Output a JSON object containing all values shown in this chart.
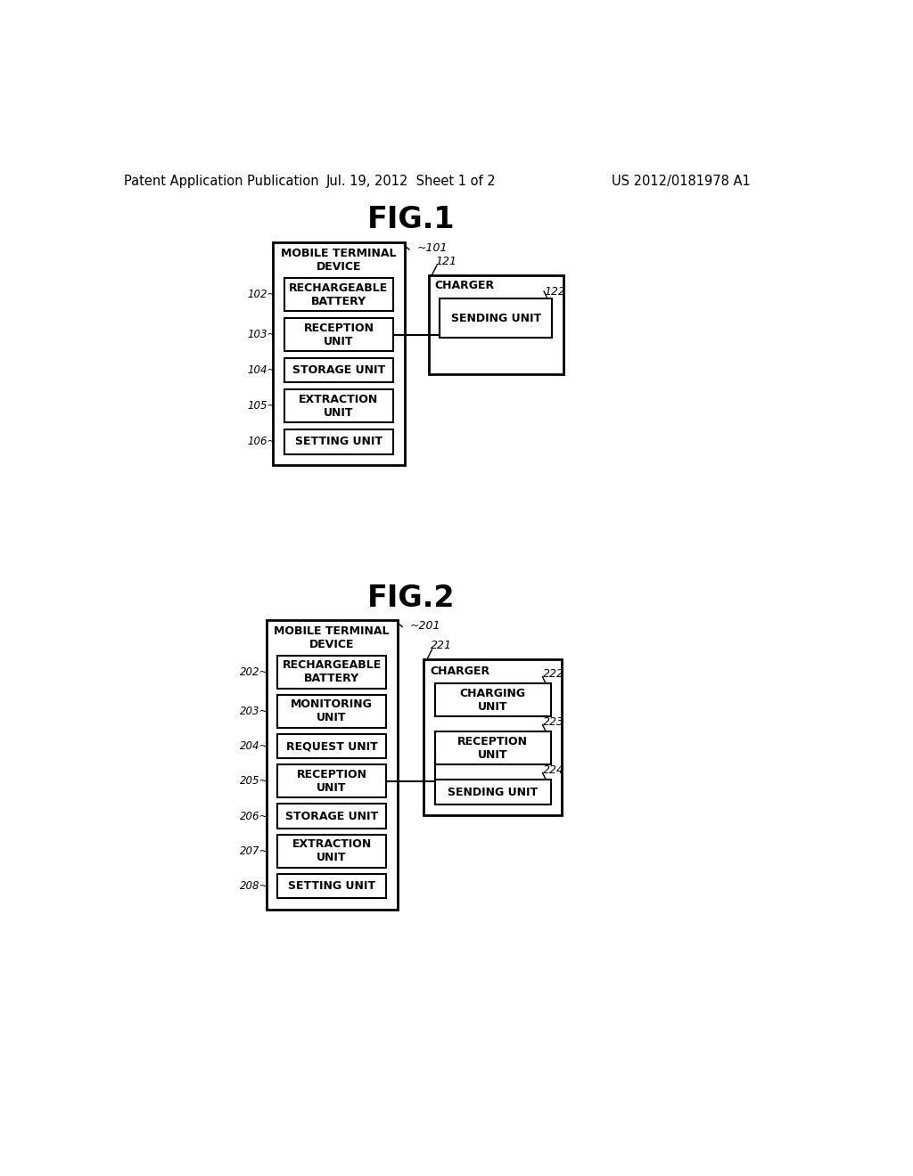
{
  "header_left": "Patent Application Publication",
  "header_mid": "Jul. 19, 2012  Sheet 1 of 2",
  "header_right": "US 2012/0181978 A1",
  "fig1_title": "FIG.1",
  "fig2_title": "FIG.2",
  "bg_color": "#ffffff",
  "fig1": {
    "mobile_title": "MOBILE TERMINAL\nDEVICE",
    "mobile_ref": "~101",
    "charger_title": "CHARGER",
    "charger_ref": "121",
    "mobile_boxes": [
      {
        "label": "RECHARGEABLE\nBATTERY",
        "ref": "102"
      },
      {
        "label": "RECEPTION\nUNIT",
        "ref": "103"
      },
      {
        "label": "STORAGE UNIT",
        "ref": "104"
      },
      {
        "label": "EXTRACTION\nUNIT",
        "ref": "105"
      },
      {
        "label": "SETTING UNIT",
        "ref": "106"
      }
    ],
    "charger_boxes": [
      {
        "label": "SENDING UNIT",
        "ref": "122"
      }
    ],
    "connect_from_mobile": 1,
    "connect_to_charger": 0
  },
  "fig2": {
    "mobile_title": "MOBILE TERMINAL\nDEVICE",
    "mobile_ref": "~201",
    "charger_title": "CHARGER",
    "charger_ref": "221",
    "mobile_boxes": [
      {
        "label": "RECHARGEABLE\nBATTERY",
        "ref": "202"
      },
      {
        "label": "MONITORING\nUNIT",
        "ref": "203"
      },
      {
        "label": "REQUEST UNIT",
        "ref": "204"
      },
      {
        "label": "RECEPTION\nUNIT",
        "ref": "205"
      },
      {
        "label": "STORAGE UNIT",
        "ref": "206"
      },
      {
        "label": "EXTRACTION\nUNIT",
        "ref": "207"
      },
      {
        "label": "SETTING UNIT",
        "ref": "208"
      }
    ],
    "charger_boxes": [
      {
        "label": "CHARGING\nUNIT",
        "ref": "222"
      },
      {
        "label": "RECEPTION\nUNIT",
        "ref": "223"
      },
      {
        "label": "SENDING UNIT",
        "ref": "224"
      }
    ],
    "connect_from_mobile": 3,
    "connect_to_charger": 1
  }
}
